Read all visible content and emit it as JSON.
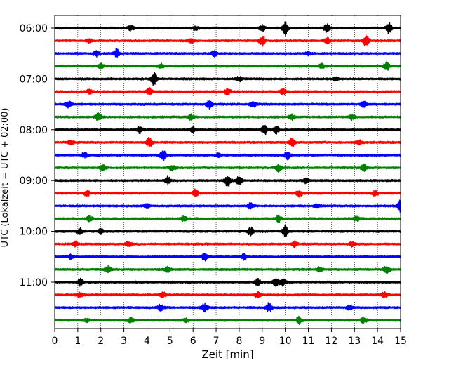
{
  "chart_data": {
    "type": "line",
    "title": "",
    "xlabel": "Zeit  [min]",
    "ylabel": "UTC (Lokalzeit = UTC + 02:00)",
    "xlim": [
      0,
      15
    ],
    "x_ticks": [
      "0",
      "1",
      "2",
      "3",
      "4",
      "5",
      "6",
      "7",
      "8",
      "9",
      "10",
      "11",
      "12",
      "13",
      "14",
      "15"
    ],
    "y_tick_labels": [
      "06:00",
      "07:00",
      "08:00",
      "09:00",
      "10:00",
      "11:00"
    ],
    "grid": "vertical dotted",
    "trace_interval_min": 15,
    "trace_colors": [
      "#000000",
      "#ff0000",
      "#0000ff",
      "#008000"
    ],
    "traces": [
      {
        "start": "06:00",
        "color": "#000000"
      },
      {
        "start": "06:15",
        "color": "#ff0000"
      },
      {
        "start": "06:30",
        "color": "#0000ff"
      },
      {
        "start": "06:45",
        "color": "#008000"
      },
      {
        "start": "07:00",
        "color": "#000000"
      },
      {
        "start": "07:15",
        "color": "#ff0000"
      },
      {
        "start": "07:30",
        "color": "#0000ff"
      },
      {
        "start": "07:45",
        "color": "#008000"
      },
      {
        "start": "08:00",
        "color": "#000000"
      },
      {
        "start": "08:15",
        "color": "#ff0000"
      },
      {
        "start": "08:30",
        "color": "#0000ff"
      },
      {
        "start": "08:45",
        "color": "#008000"
      },
      {
        "start": "09:00",
        "color": "#000000"
      },
      {
        "start": "09:15",
        "color": "#ff0000"
      },
      {
        "start": "09:30",
        "color": "#0000ff"
      },
      {
        "start": "09:45",
        "color": "#008000"
      },
      {
        "start": "10:00",
        "color": "#000000"
      },
      {
        "start": "10:15",
        "color": "#ff0000"
      },
      {
        "start": "10:30",
        "color": "#0000ff"
      },
      {
        "start": "10:45",
        "color": "#008000"
      },
      {
        "start": "11:00",
        "color": "#000000"
      },
      {
        "start": "11:15",
        "color": "#ff0000"
      },
      {
        "start": "11:30",
        "color": "#0000ff"
      },
      {
        "start": "11:45",
        "color": "#008000"
      }
    ],
    "events": [
      [
        [
          10.0,
          1.0
        ],
        [
          11.8,
          0.7
        ],
        [
          14.5,
          0.9
        ],
        [
          3.3,
          0.4
        ],
        [
          6.1,
          0.3
        ],
        [
          9.0,
          0.5
        ]
      ],
      [
        [
          9.0,
          0.8
        ],
        [
          11.8,
          0.5
        ],
        [
          13.5,
          0.9
        ],
        [
          1.5,
          0.3
        ],
        [
          5.9,
          0.3
        ]
      ],
      [
        [
          2.7,
          0.7
        ],
        [
          6.9,
          0.5
        ],
        [
          1.8,
          0.4
        ],
        [
          11.0,
          0.3
        ]
      ],
      [
        [
          2.0,
          0.4
        ],
        [
          4.6,
          0.4
        ],
        [
          11.6,
          0.4
        ],
        [
          14.4,
          0.7
        ]
      ],
      [
        [
          4.3,
          1.0
        ],
        [
          8.0,
          0.4
        ],
        [
          12.2,
          0.3
        ]
      ],
      [
        [
          4.1,
          0.6
        ],
        [
          7.5,
          0.5
        ],
        [
          1.5,
          0.4
        ],
        [
          9.9,
          0.4
        ]
      ],
      [
        [
          0.6,
          0.5
        ],
        [
          6.7,
          0.6
        ],
        [
          8.6,
          0.5
        ],
        [
          13.4,
          0.4
        ]
      ],
      [
        [
          1.9,
          0.7
        ],
        [
          5.9,
          0.4
        ],
        [
          10.3,
          0.4
        ],
        [
          12.9,
          0.4
        ]
      ],
      [
        [
          3.7,
          0.5
        ],
        [
          9.1,
          0.8
        ],
        [
          9.6,
          0.6
        ],
        [
          6.0,
          0.4
        ]
      ],
      [
        [
          4.1,
          0.7
        ],
        [
          10.3,
          0.6
        ],
        [
          0.7,
          0.3
        ],
        [
          13.2,
          0.3
        ]
      ],
      [
        [
          1.3,
          0.4
        ],
        [
          4.7,
          0.8
        ],
        [
          7.1,
          0.3
        ],
        [
          10.1,
          0.6
        ]
      ],
      [
        [
          2.1,
          0.4
        ],
        [
          5.1,
          0.4
        ],
        [
          9.7,
          0.6
        ],
        [
          13.4,
          0.5
        ]
      ],
      [
        [
          4.9,
          0.6
        ],
        [
          7.5,
          0.9
        ],
        [
          8.0,
          0.7
        ],
        [
          10.9,
          0.4
        ]
      ],
      [
        [
          1.4,
          0.4
        ],
        [
          6.1,
          0.6
        ],
        [
          10.6,
          0.5
        ],
        [
          13.9,
          0.4
        ]
      ],
      [
        [
          4.0,
          0.4
        ],
        [
          8.5,
          0.5
        ],
        [
          11.4,
          0.3
        ],
        [
          15.0,
          0.9
        ]
      ],
      [
        [
          1.5,
          0.4
        ],
        [
          5.6,
          0.4
        ],
        [
          9.7,
          0.5
        ],
        [
          13.1,
          0.4
        ]
      ],
      [
        [
          1.1,
          0.5
        ],
        [
          2.0,
          0.4
        ],
        [
          8.5,
          0.6
        ],
        [
          10.0,
          0.8
        ]
      ],
      [
        [
          0.9,
          0.4
        ],
        [
          3.2,
          0.4
        ],
        [
          10.4,
          0.5
        ],
        [
          12.9,
          0.4
        ]
      ],
      [
        [
          6.5,
          0.7
        ],
        [
          8.2,
          0.4
        ],
        [
          0.7,
          0.3
        ]
      ],
      [
        [
          2.3,
          0.5
        ],
        [
          4.9,
          0.4
        ],
        [
          11.5,
          0.4
        ],
        [
          14.4,
          0.6
        ]
      ],
      [
        [
          1.1,
          0.5
        ],
        [
          8.8,
          0.5
        ],
        [
          9.6,
          0.6
        ],
        [
          9.9,
          0.5
        ]
      ],
      [
        [
          1.1,
          0.4
        ],
        [
          4.7,
          0.4
        ],
        [
          8.8,
          0.4
        ],
        [
          14.3,
          0.4
        ]
      ],
      [
        [
          4.6,
          0.5
        ],
        [
          6.5,
          0.7
        ],
        [
          9.3,
          0.7
        ],
        [
          12.8,
          0.4
        ]
      ],
      [
        [
          1.4,
          0.3
        ],
        [
          3.3,
          0.4
        ],
        [
          5.7,
          0.3
        ],
        [
          10.6,
          0.5
        ],
        [
          13.4,
          0.4
        ]
      ]
    ]
  }
}
